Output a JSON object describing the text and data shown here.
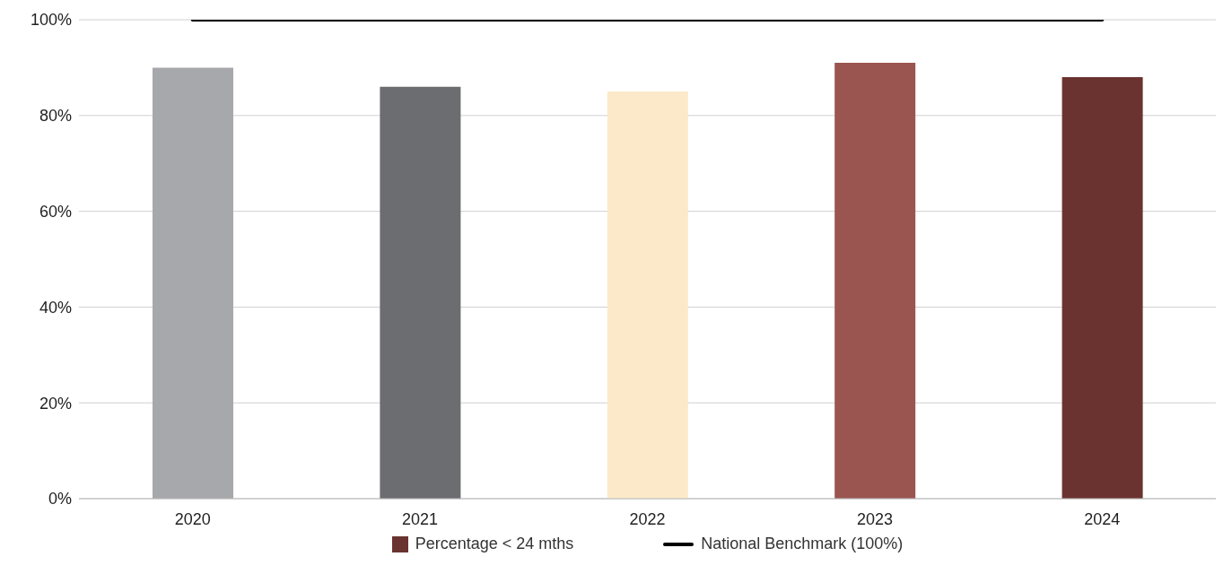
{
  "chart_data": {
    "type": "bar",
    "categories": [
      "2020",
      "2021",
      "2022",
      "2023",
      "2024"
    ],
    "series": [
      {
        "name": "Percentage < 24 mths",
        "color": "#6b3330",
        "colors": [
          "#a7a8ab",
          "#6c6d70",
          "#fce9c9",
          "#9a5550",
          "#6b3330"
        ],
        "values": [
          90,
          86,
          85,
          91,
          88
        ]
      },
      {
        "name": "National Benchmark (100%)",
        "type": "line",
        "color": "#000000",
        "values": [
          100,
          100,
          100,
          100,
          100
        ]
      }
    ],
    "ylim": [
      0,
      100
    ],
    "yticks": [
      {
        "value": 0,
        "label": "0%"
      },
      {
        "value": 20,
        "label": "20%"
      },
      {
        "value": 40,
        "label": "40%"
      },
      {
        "value": 60,
        "label": "60%"
      },
      {
        "value": 80,
        "label": "80%"
      },
      {
        "value": 100,
        "label": "100%"
      }
    ],
    "grid": "y",
    "legend": "bottom",
    "marker": "none"
  }
}
